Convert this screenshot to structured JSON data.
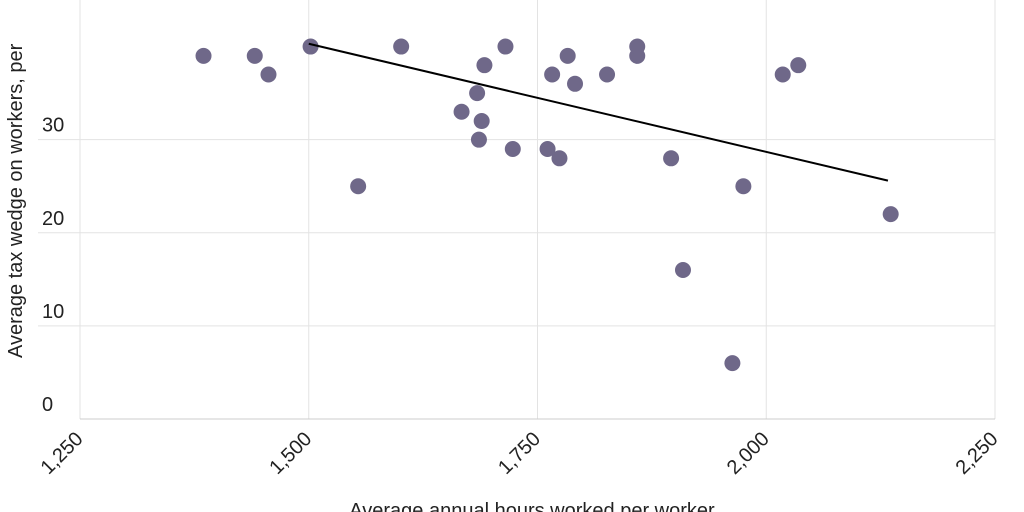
{
  "chart_data": {
    "type": "scatter",
    "title": "",
    "xlabel": "Average annual hours worked per worker",
    "ylabel": "Average tax wedge on workers, per",
    "xlim": [
      1250,
      2250
    ],
    "ylim": [
      0,
      45
    ],
    "x_ticks": [
      1250,
      1500,
      1750,
      2000,
      2250
    ],
    "x_tick_labels": [
      "1,250",
      "1,500",
      "1,750",
      "2,000",
      "2,250"
    ],
    "y_ticks": [
      0,
      10,
      20,
      30
    ],
    "y_tick_labels": [
      "0",
      "10",
      "20",
      "30"
    ],
    "grid": true,
    "point_color": "#6f6889",
    "trendline_color": "#000000",
    "points": [
      {
        "x": 1385,
        "y": 39
      },
      {
        "x": 1441,
        "y": 39
      },
      {
        "x": 1456,
        "y": 37
      },
      {
        "x": 1502,
        "y": 40
      },
      {
        "x": 1554,
        "y": 25
      },
      {
        "x": 1601,
        "y": 40
      },
      {
        "x": 1667,
        "y": 33
      },
      {
        "x": 1684,
        "y": 35
      },
      {
        "x": 1686,
        "y": 30
      },
      {
        "x": 1689,
        "y": 32
      },
      {
        "x": 1692,
        "y": 38
      },
      {
        "x": 1715,
        "y": 40
      },
      {
        "x": 1723,
        "y": 29
      },
      {
        "x": 1761,
        "y": 29
      },
      {
        "x": 1766,
        "y": 37
      },
      {
        "x": 1774,
        "y": 28
      },
      {
        "x": 1783,
        "y": 39
      },
      {
        "x": 1791,
        "y": 36
      },
      {
        "x": 1826,
        "y": 37
      },
      {
        "x": 1859,
        "y": 39
      },
      {
        "x": 1859,
        "y": 40
      },
      {
        "x": 1896,
        "y": 28
      },
      {
        "x": 1909,
        "y": 16
      },
      {
        "x": 1963,
        "y": 6
      },
      {
        "x": 1975,
        "y": 25
      },
      {
        "x": 2018,
        "y": 37
      },
      {
        "x": 2035,
        "y": 38
      },
      {
        "x": 2136,
        "y": 22
      }
    ],
    "trendline": {
      "x": [
        1500,
        2133
      ],
      "y": [
        40.3,
        25.6
      ]
    }
  }
}
